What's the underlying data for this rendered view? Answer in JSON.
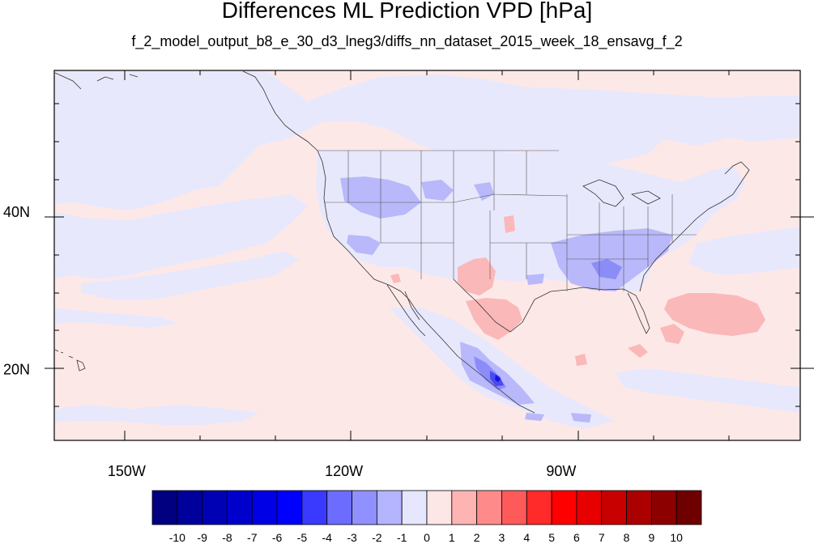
{
  "title": "Differences ML Prediction VPD [hPa]",
  "subtitle": "f_2_model_output_b8_e_30_d3_lneg3/diffs_nn_dataset_2015_week_18_ensavg_f_2",
  "map": {
    "projection": "cylindrical-equidistant",
    "lon_range": [
      -160,
      -57
    ],
    "lat_range": [
      11,
      58
    ],
    "background_value_color": "#fde8e8",
    "lon_ticks": [
      {
        "lon": -150,
        "label": "150W"
      },
      {
        "lon": -120,
        "label": "120W"
      },
      {
        "lon": -90,
        "label": "90W"
      }
    ],
    "lat_ticks": [
      {
        "lat": 40,
        "label": "40N"
      },
      {
        "lat": 20,
        "label": "20N"
      }
    ]
  },
  "colorbar": {
    "labels": [
      "-10",
      "-9",
      "-8",
      "-7",
      "-6",
      "-5",
      "-4",
      "-3",
      "-2",
      "-1",
      "0",
      "1",
      "2",
      "3",
      "4",
      "5",
      "6",
      "7",
      "8",
      "9",
      "10"
    ],
    "colors": [
      "#000080",
      "#00009a",
      "#0000b4",
      "#0000cd",
      "#0000e6",
      "#0000ff",
      "#3a3aff",
      "#6c6cff",
      "#9090ff",
      "#b4b4ff",
      "#e6e6ff",
      "#fde6e6",
      "#ffb4b4",
      "#ff8a8a",
      "#ff5a5a",
      "#ff2a2a",
      "#ff0000",
      "#e60000",
      "#c80000",
      "#aa0000",
      "#8c0000",
      "#6e0000"
    ]
  }
}
